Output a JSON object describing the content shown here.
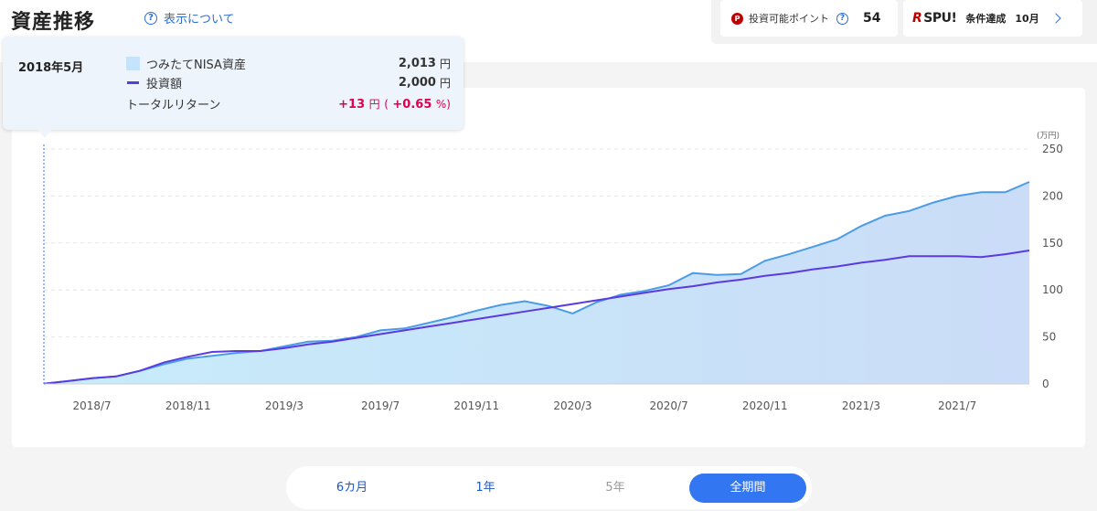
{
  "header": {
    "title": "資産推移",
    "help_label": "表示について"
  },
  "points": {
    "badge": "P",
    "label": "投資可能ポイント",
    "value": "54"
  },
  "spu": {
    "logo_r": "R",
    "logo_text": "SPU!",
    "status": "条件達成",
    "month": "10月"
  },
  "tooltip": {
    "date": "2018年5月",
    "rows": [
      {
        "label": "つみたてNISA資産",
        "amount": "2,013",
        "unit": "円"
      },
      {
        "label": "投資額",
        "amount": "2,000",
        "unit": "円"
      }
    ],
    "return_label": "トータルリターン",
    "return_value": "+13",
    "return_unit": "円",
    "return_pct_open": "(",
    "return_pct": "+0.65",
    "return_pct_close": "%)"
  },
  "periods": [
    {
      "label": "6カ月",
      "state": "link"
    },
    {
      "label": "1年",
      "state": "link"
    },
    {
      "label": "5年",
      "state": "disabled"
    },
    {
      "label": "全期間",
      "state": "active"
    }
  ],
  "colors": {
    "asset_line": "#4a9ce8",
    "asset_fill_start": "#c7ecfa",
    "asset_fill_end": "#cadcf7",
    "invest_line": "#5b3be0",
    "accent": "#3376f2",
    "return_red": "#e0004d"
  },
  "chart_data": {
    "type": "area",
    "unit_label": "(万円)",
    "ylim": [
      0,
      250
    ],
    "yticks": [
      0,
      50,
      100,
      150,
      200,
      250
    ],
    "x_tick_labels": [
      "2018/7",
      "2018/11",
      "2019/3",
      "2019/7",
      "2019/11",
      "2020/3",
      "2020/7",
      "2020/11",
      "2021/3",
      "2021/7"
    ],
    "x_tick_index": [
      2,
      6,
      10,
      14,
      18,
      22,
      26,
      30,
      34,
      38
    ],
    "x": [
      "2018/5",
      "2018/6",
      "2018/7",
      "2018/8",
      "2018/9",
      "2018/10",
      "2018/11",
      "2018/12",
      "2019/1",
      "2019/2",
      "2019/3",
      "2019/4",
      "2019/5",
      "2019/6",
      "2019/7",
      "2019/8",
      "2019/9",
      "2019/10",
      "2019/11",
      "2019/12",
      "2020/1",
      "2020/2",
      "2020/3",
      "2020/4",
      "2020/5",
      "2020/6",
      "2020/7",
      "2020/8",
      "2020/9",
      "2020/10",
      "2020/11",
      "2020/12",
      "2021/1",
      "2021/2",
      "2021/3",
      "2021/4",
      "2021/5",
      "2021/6",
      "2021/7",
      "2021/8",
      "2021/9",
      "2021/10"
    ],
    "series": [
      {
        "name": "つみたてNISA資産",
        "style": "area",
        "values": [
          0.2,
          3,
          6,
          8,
          14,
          21,
          27,
          30,
          33,
          35,
          40,
          45,
          46,
          50,
          57,
          59,
          65,
          71,
          78,
          84,
          88,
          83,
          75,
          87,
          95,
          99,
          105,
          118,
          116,
          117,
          131,
          138,
          146,
          154,
          168,
          179,
          184,
          193,
          200,
          204,
          204,
          215
        ]
      },
      {
        "name": "投資額",
        "style": "line",
        "values": [
          0.2,
          3,
          6,
          8,
          14,
          23,
          29,
          34,
          35,
          35,
          38,
          42,
          45,
          49,
          53,
          57,
          61,
          65,
          69,
          73,
          77,
          81,
          85,
          89,
          93,
          97,
          101,
          104,
          108,
          111,
          115,
          118,
          122,
          125,
          129,
          132,
          136,
          136,
          136,
          135,
          138,
          142
        ]
      }
    ],
    "grid": true,
    "legend": "tooltip"
  }
}
